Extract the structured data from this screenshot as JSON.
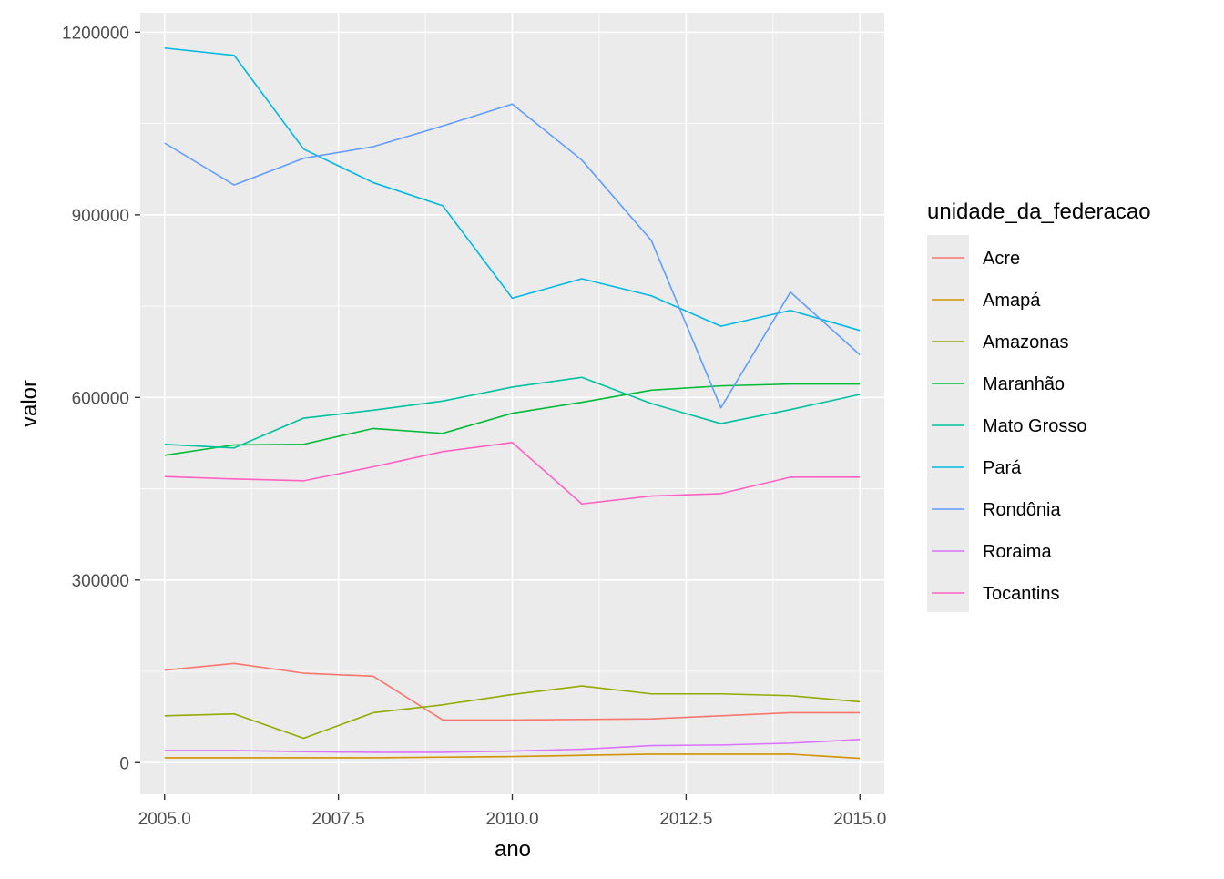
{
  "chart_data": {
    "type": "line",
    "xlabel": "ano",
    "ylabel": "valor",
    "xlim": [
      2004.65,
      2015.35
    ],
    "ylim": [
      -52000,
      1232000
    ],
    "x_ticks": [
      2005.0,
      2007.5,
      2010.0,
      2012.5,
      2015.0
    ],
    "x_tick_labels": [
      "2005.0",
      "2007.5",
      "2010.0",
      "2012.5",
      "2015.0"
    ],
    "y_ticks": [
      0,
      300000,
      600000,
      900000,
      1200000
    ],
    "y_tick_labels": [
      "0",
      "300000",
      "600000",
      "900000",
      "1200000"
    ],
    "grid": true,
    "legend": {
      "title": "unidade_da_federacao",
      "position": "right"
    },
    "x": [
      2005,
      2006,
      2007,
      2008,
      2009,
      2010,
      2011,
      2012,
      2013,
      2014,
      2015
    ],
    "series": [
      {
        "name": "Acre",
        "color": "#F8766D",
        "values": [
          152000,
          163000,
          147000,
          142000,
          70000,
          70000,
          71000,
          72000,
          77000,
          82000,
          82000
        ]
      },
      {
        "name": "Amapá",
        "color": "#D39200",
        "values": [
          8000,
          8000,
          8000,
          8000,
          9000,
          10000,
          12000,
          14000,
          14000,
          14000,
          7000
        ]
      },
      {
        "name": "Amazonas",
        "color": "#93AA00",
        "values": [
          77000,
          80000,
          40000,
          82000,
          95000,
          112000,
          126000,
          113000,
          113000,
          110000,
          100000
        ]
      },
      {
        "name": "Maranhão",
        "color": "#00BA38",
        "values": [
          505000,
          522000,
          523000,
          549000,
          541000,
          574000,
          592000,
          612000,
          619000,
          622000,
          622000
        ]
      },
      {
        "name": "Mato Grosso",
        "color": "#00C19F",
        "values": [
          523000,
          517000,
          566000,
          579000,
          594000,
          617000,
          633000,
          590000,
          557000,
          580000,
          605000
        ]
      },
      {
        "name": "Pará",
        "color": "#00B9E3",
        "values": [
          1174000,
          1162000,
          1008000,
          953000,
          915000,
          763000,
          795000,
          767000,
          717000,
          743000,
          710000
        ]
      },
      {
        "name": "Rondônia",
        "color": "#619CFF",
        "values": [
          1018000,
          949000,
          993000,
          1012000,
          1046000,
          1082000,
          990000,
          858000,
          583000,
          773000,
          670000
        ]
      },
      {
        "name": "Roraima",
        "color": "#DB72FB",
        "values": [
          20000,
          20000,
          18000,
          17000,
          17000,
          19000,
          22000,
          28000,
          29000,
          32000,
          38000
        ]
      },
      {
        "name": "Tocantins",
        "color": "#FF61C3",
        "values": [
          470000,
          466000,
          463000,
          486000,
          511000,
          526000,
          425000,
          438000,
          442000,
          469000,
          469000
        ]
      }
    ]
  }
}
